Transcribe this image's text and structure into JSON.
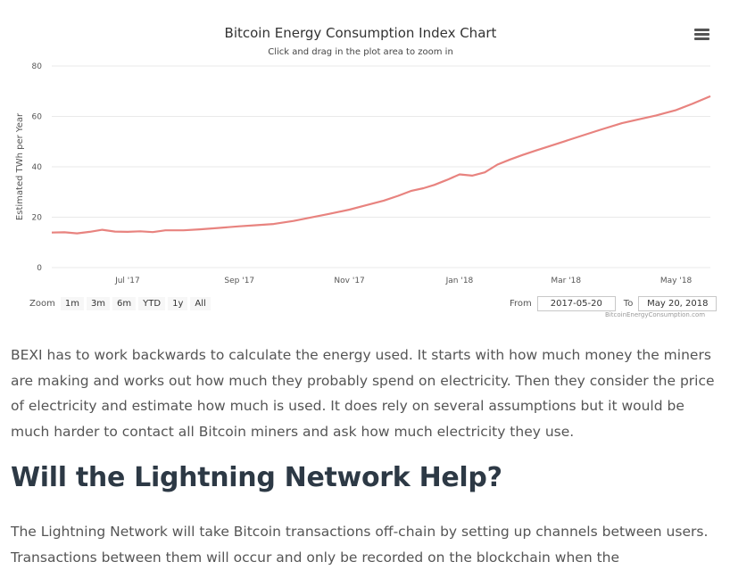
{
  "chart_data": {
    "type": "line",
    "title": "Bitcoin Energy Consumption Index Chart",
    "subtitle": "Click and drag in the plot area to zoom in",
    "ylabel": "Estimated TWh per Year",
    "xlabel": "",
    "ylim": [
      0,
      80
    ],
    "yticks": [
      0,
      20,
      40,
      60,
      80
    ],
    "xticks": [
      {
        "date": "2017-07-01",
        "label": "Jul '17"
      },
      {
        "date": "2017-09-01",
        "label": "Sep '17"
      },
      {
        "date": "2017-11-01",
        "label": "Nov '17"
      },
      {
        "date": "2018-01-01",
        "label": "Jan '18"
      },
      {
        "date": "2018-03-01",
        "label": "Mar '18"
      },
      {
        "date": "2018-05-01",
        "label": "May '18"
      }
    ],
    "xlim": [
      "2017-05-20",
      "2018-05-20"
    ],
    "grid": true,
    "legend": "none",
    "line_color": "#e8837f",
    "series": [
      {
        "x": [
          "2017-05-20",
          "2017-05-27",
          "2017-06-03",
          "2017-06-10",
          "2017-06-17",
          "2017-06-24",
          "2017-07-01",
          "2017-07-08",
          "2017-07-15",
          "2017-07-22",
          "2017-08-01",
          "2017-08-10",
          "2017-08-20",
          "2017-09-01",
          "2017-09-10",
          "2017-09-20",
          "2017-10-01",
          "2017-10-10",
          "2017-10-20",
          "2017-11-01",
          "2017-11-10",
          "2017-11-20",
          "2017-11-28",
          "2017-12-05",
          "2017-12-12",
          "2017-12-18",
          "2017-12-25",
          "2018-01-01",
          "2018-01-08",
          "2018-01-15",
          "2018-01-22",
          "2018-01-29",
          "2018-02-05",
          "2018-02-12",
          "2018-02-19",
          "2018-03-01",
          "2018-03-10",
          "2018-03-20",
          "2018-04-01",
          "2018-04-10",
          "2018-04-20",
          "2018-05-01",
          "2018-05-10",
          "2018-05-20"
        ],
        "y": [
          13.9,
          14.0,
          13.6,
          14.2,
          15.0,
          14.3,
          14.2,
          14.4,
          14.1,
          14.8,
          14.8,
          15.2,
          15.7,
          16.4,
          16.8,
          17.3,
          18.5,
          19.8,
          21.2,
          23.0,
          24.7,
          26.6,
          28.5,
          30.4,
          31.5,
          32.8,
          34.8,
          37.0,
          36.5,
          37.8,
          40.9,
          42.9,
          44.7,
          46.4,
          48.0,
          50.3,
          52.4,
          54.7,
          57.3,
          58.8,
          60.4,
          62.5,
          65.0,
          68.0
        ]
      }
    ]
  },
  "menu": {
    "icon": "hamburger-menu-icon"
  },
  "zoom": {
    "label": "Zoom",
    "buttons": [
      "1m",
      "3m",
      "6m",
      "YTD",
      "1y",
      "All"
    ]
  },
  "range": {
    "from_label": "From",
    "from_value": "2017-05-20",
    "to_label": "To",
    "to_value": "May 20, 2018"
  },
  "credit": "BitcoinEnergyConsumption.com",
  "article": {
    "paragraph1": "BEXI has to work backwards to calculate the energy used. It starts with how much money the miners are making and works out how much they probably spend on electricity. Then they consider the price of electricity and estimate how much is used. It does rely on several assumptions but it would be much harder to contact all Bitcoin miners and ask how much electricity they use.",
    "heading": "Will the Lightning Network Help?",
    "paragraph2": "The Lightning Network will take Bitcoin transactions off-chain by setting up channels between users. Transactions between them will occur and only be recorded on the blockchain when the"
  }
}
